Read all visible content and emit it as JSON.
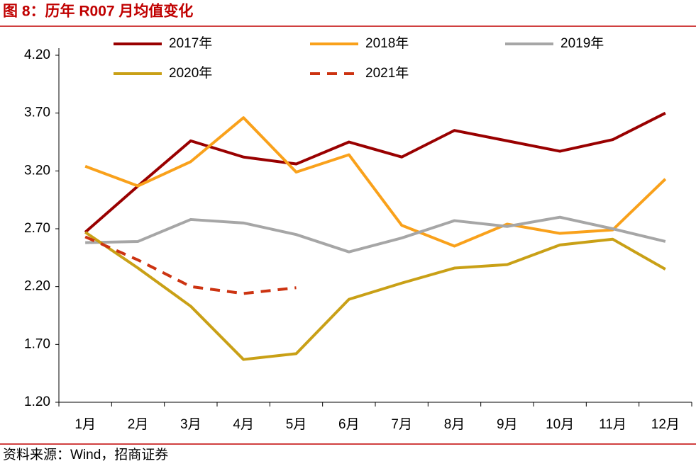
{
  "chart_data": {
    "type": "line",
    "title": "图 8：历年 R007 月均值变化",
    "source": "资料来源：Wind，招商证券",
    "categories": [
      "1月",
      "2月",
      "3月",
      "4月",
      "5月",
      "6月",
      "7月",
      "8月",
      "9月",
      "10月",
      "11月",
      "12月"
    ],
    "series": [
      {
        "name": "2017年",
        "color": "#990000",
        "line_style": "solid",
        "values": [
          2.67,
          3.07,
          3.46,
          3.32,
          3.26,
          3.45,
          3.32,
          3.55,
          3.46,
          3.37,
          3.47,
          3.7
        ]
      },
      {
        "name": "2018年",
        "color": "#f9a11b",
        "line_style": "solid",
        "values": [
          3.24,
          3.07,
          3.28,
          3.66,
          3.19,
          3.34,
          2.73,
          2.55,
          2.74,
          2.66,
          2.69,
          3.13
        ]
      },
      {
        "name": "2019年",
        "color": "#a6a6a6",
        "line_style": "solid",
        "values": [
          2.58,
          2.59,
          2.78,
          2.75,
          2.65,
          2.5,
          2.62,
          2.77,
          2.72,
          2.8,
          2.7,
          2.59
        ]
      },
      {
        "name": "2020年",
        "color": "#c9a016",
        "line_style": "solid",
        "values": [
          2.67,
          2.36,
          2.03,
          1.57,
          1.62,
          2.09,
          2.23,
          2.36,
          2.39,
          2.56,
          2.61,
          2.35
        ]
      },
      {
        "name": "2021年",
        "color": "#cc3311",
        "line_style": "dashed",
        "values": [
          2.63,
          2.43,
          2.2,
          2.14,
          2.19,
          null,
          null,
          null,
          null,
          null,
          null,
          null
        ]
      }
    ],
    "ylim": [
      1.2,
      4.2
    ],
    "yticks": [
      {
        "value": 1.2,
        "label": "1.20"
      },
      {
        "value": 1.7,
        "label": "1.70"
      },
      {
        "value": 2.2,
        "label": "2.20"
      },
      {
        "value": 2.7,
        "label": "2.70"
      },
      {
        "value": 3.2,
        "label": "3.20"
      },
      {
        "value": 3.7,
        "label": "3.70"
      },
      {
        "value": 4.2,
        "label": "4.20"
      }
    ],
    "grid": false,
    "legend": "top"
  }
}
